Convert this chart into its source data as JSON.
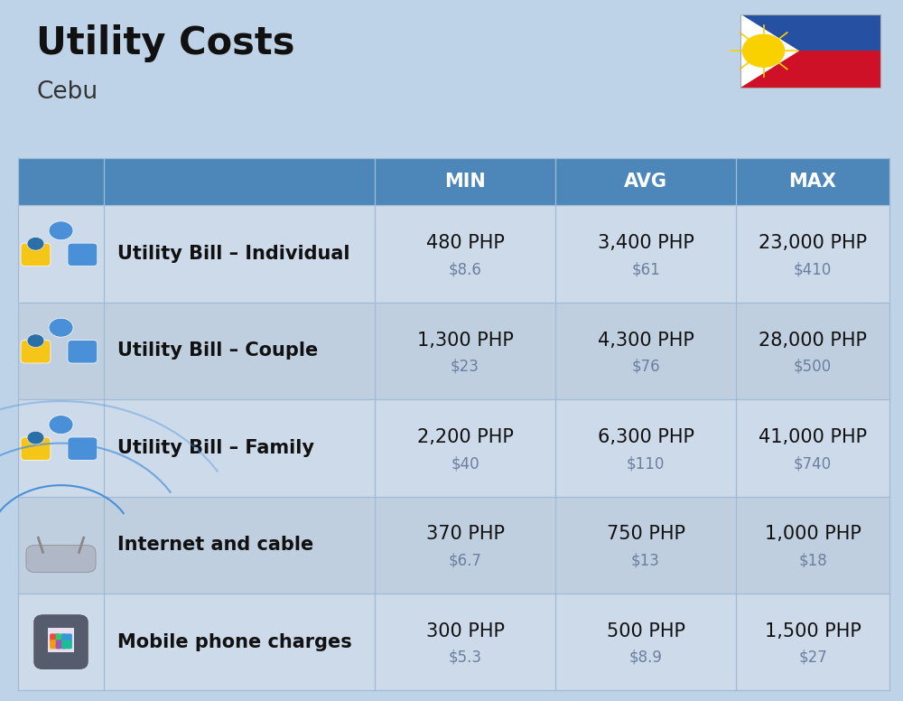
{
  "title": "Utility Costs",
  "subtitle": "Cebu",
  "background_color": "#bed3e8",
  "header_bg_color": "#4d86b8",
  "header_text_color": "#ffffff",
  "row_bg_color_1": "#ccdaea",
  "row_bg_color_2": "#bfcfe0",
  "col_divider_color": "#a0bcd4",
  "headers": [
    "MIN",
    "AVG",
    "MAX"
  ],
  "rows": [
    {
      "label": "Utility Bill – Individual",
      "min_php": "480 PHP",
      "min_usd": "$8.6",
      "avg_php": "3,400 PHP",
      "avg_usd": "$61",
      "max_php": "23,000 PHP",
      "max_usd": "$410"
    },
    {
      "label": "Utility Bill – Couple",
      "min_php": "1,300 PHP",
      "min_usd": "$23",
      "avg_php": "4,300 PHP",
      "avg_usd": "$76",
      "max_php": "28,000 PHP",
      "max_usd": "$500"
    },
    {
      "label": "Utility Bill – Family",
      "min_php": "2,200 PHP",
      "min_usd": "$40",
      "avg_php": "6,300 PHP",
      "avg_usd": "$110",
      "max_php": "41,000 PHP",
      "max_usd": "$740"
    },
    {
      "label": "Internet and cable",
      "min_php": "370 PHP",
      "min_usd": "$6.7",
      "avg_php": "750 PHP",
      "avg_usd": "$13",
      "max_php": "1,000 PHP",
      "max_usd": "$18"
    },
    {
      "label": "Mobile phone charges",
      "min_php": "300 PHP",
      "min_usd": "$5.3",
      "avg_php": "500 PHP",
      "avg_usd": "$8.9",
      "max_php": "1,500 PHP",
      "max_usd": "$27"
    }
  ],
  "title_fontsize": 30,
  "subtitle_fontsize": 19,
  "header_fontsize": 15,
  "label_fontsize": 15,
  "value_fontsize": 15,
  "usd_fontsize": 12
}
